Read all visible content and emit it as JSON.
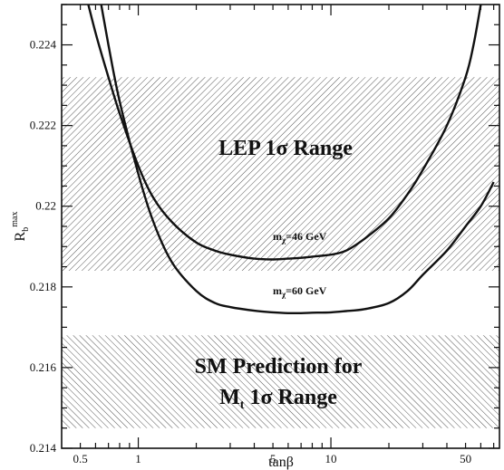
{
  "chart_data": {
    "type": "line",
    "xlabel": "tanβ",
    "ylabel": "R_b^max",
    "ylabel_main": "R",
    "ylabel_sub": "b",
    "ylabel_sup": "max",
    "x_scale": "log",
    "xlim": [
      0.4,
      75
    ],
    "ylim": [
      0.214,
      0.225
    ],
    "x_major_ticks": [
      1,
      10
    ],
    "x_ticks": [
      0.5,
      0.6,
      0.7,
      0.8,
      0.9,
      1,
      2,
      3,
      4,
      5,
      6,
      7,
      8,
      9,
      10,
      20,
      30,
      40,
      50,
      60,
      70
    ],
    "x_tick_labels": [
      {
        "value": 0.5,
        "label": "0.5"
      },
      {
        "value": 1,
        "label": "1"
      },
      {
        "value": 5,
        "label": "5"
      },
      {
        "value": 10,
        "label": "10"
      },
      {
        "value": 50,
        "label": "50"
      }
    ],
    "y_tick_labels": [
      {
        "value": 0.214,
        "label": "0.214"
      },
      {
        "value": 0.216,
        "label": "0.216"
      },
      {
        "value": 0.218,
        "label": "0.218"
      },
      {
        "value": 0.22,
        "label": "0.22"
      },
      {
        "value": 0.222,
        "label": "0.222"
      },
      {
        "value": 0.224,
        "label": "0.224"
      }
    ],
    "y_minor_step": 0.0005,
    "bands": [
      {
        "label": "LEP 1σ Range",
        "y_range": [
          0.2184,
          0.2232
        ]
      },
      {
        "label_lines": [
          "SM Prediction for",
          "Mt 1σ Range"
        ],
        "label_line1": "SM Prediction for",
        "label_line2_main": "M",
        "label_line2_sub": "t",
        "label_line2_rest": " 1σ Range",
        "y_range": [
          0.2145,
          0.2168
        ]
      }
    ],
    "series": [
      {
        "label_main": "m",
        "label_sub": "χ",
        "label_rest": "=46 GeV",
        "x": [
          0.5,
          0.6,
          0.7,
          0.8,
          1,
          1.2,
          1.5,
          2,
          2.5,
          3,
          4,
          5,
          6,
          7,
          8,
          10,
          12,
          15,
          20,
          25,
          30,
          40,
          50,
          55,
          60
        ],
        "y": [
          0.2258,
          0.2243,
          0.2232,
          0.2223,
          0.221,
          0.2202,
          0.2196,
          0.2191,
          0.2189,
          0.2188,
          0.2187,
          0.21868,
          0.2187,
          0.21872,
          0.21875,
          0.2188,
          0.2189,
          0.2192,
          0.2197,
          0.2203,
          0.2209,
          0.222,
          0.2232,
          0.224,
          0.225
        ]
      },
      {
        "label_main": "m",
        "label_sub": "χ",
        "label_rest": "=60 GeV",
        "x": [
          0.6,
          0.7,
          0.8,
          1,
          1.2,
          1.5,
          2,
          2.5,
          3,
          4,
          5,
          6,
          7,
          8,
          10,
          12,
          15,
          20,
          25,
          30,
          40,
          50,
          60,
          70
        ],
        "y": [
          0.2258,
          0.224,
          0.2226,
          0.2208,
          0.2196,
          0.2186,
          0.2179,
          0.2176,
          0.2175,
          0.21741,
          0.21737,
          0.21735,
          0.21735,
          0.21736,
          0.21737,
          0.2174,
          0.21745,
          0.2176,
          0.2179,
          0.2183,
          0.2189,
          0.2195,
          0.22,
          0.2206
        ]
      }
    ]
  }
}
